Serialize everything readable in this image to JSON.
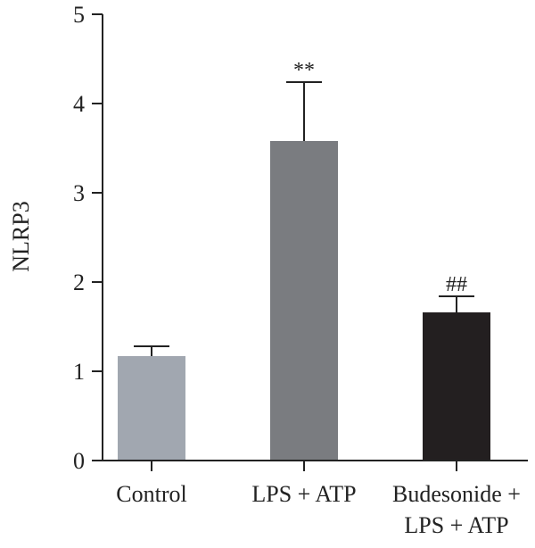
{
  "chart_data": {
    "type": "bar",
    "ylabel": "NLRP3",
    "ylim": [
      0,
      5
    ],
    "yticks": [
      "0",
      "1",
      "2",
      "3",
      "4",
      "5"
    ],
    "bars": [
      {
        "labels": [
          "Control"
        ],
        "value": 1.17,
        "error": 0.11,
        "color": "#a1a7b0",
        "annotation": ""
      },
      {
        "labels": [
          "LPS + ATP"
        ],
        "value": 3.58,
        "error": 0.66,
        "color": "#7a7c80",
        "annotation": "**"
      },
      {
        "labels": [
          "Budesonide +",
          "LPS + ATP"
        ],
        "value": 1.66,
        "error": 0.18,
        "color": "#231f20",
        "annotation": "##"
      }
    ]
  }
}
